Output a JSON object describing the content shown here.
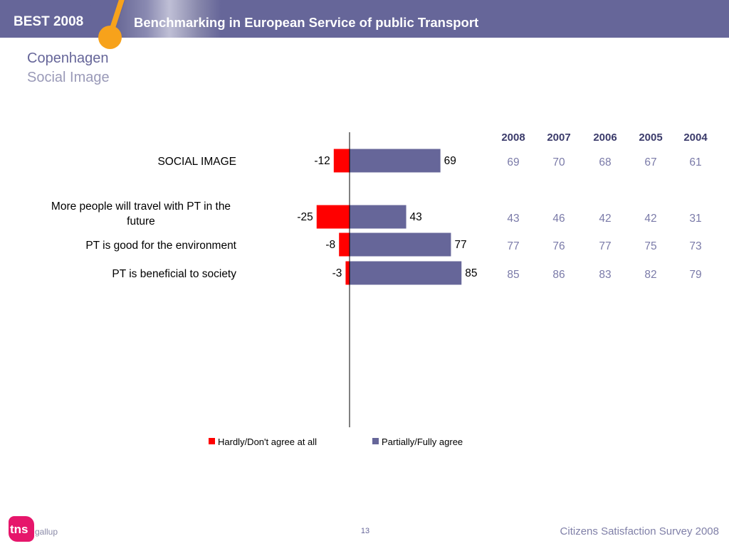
{
  "header": {
    "brand": "BEST 2008",
    "title": "Benchmarking in European Service of public Transport"
  },
  "page": {
    "city": "Copenhagen",
    "topic": "Social Image"
  },
  "chart_data": {
    "type": "bar",
    "orientation": "horizontal",
    "stacked": "diverging",
    "categories": [
      "SOCIAL IMAGE",
      "More people will travel with PT in the future",
      "PT is good for the environment",
      "PT is beneficial to society"
    ],
    "series": [
      {
        "name": "Hardly/Don't agree at all",
        "values": [
          -12,
          -25,
          -8,
          -3
        ],
        "color": "#ff0000"
      },
      {
        "name": "Partially/Fully agree",
        "values": [
          69,
          43,
          77,
          85
        ],
        "color": "#666699"
      }
    ],
    "legend_position": "bottom",
    "grid": false,
    "table": {
      "columns": [
        "2008",
        "2007",
        "2006",
        "2005",
        "2004"
      ],
      "rows": [
        [
          69,
          70,
          68,
          67,
          61
        ],
        [
          43,
          46,
          42,
          42,
          31
        ],
        [
          77,
          76,
          77,
          75,
          73
        ],
        [
          85,
          86,
          83,
          82,
          79
        ]
      ]
    }
  },
  "footer": {
    "logo_text": "tns",
    "logo_sub": "gallup",
    "page_number": "13",
    "survey": "Citizens Satisfaction Survey 2008"
  },
  "colors": {
    "header": "#666699",
    "accent": "#f7a21b",
    "negative": "#ff0000",
    "positive": "#666699",
    "table_text": "#7a7aa8",
    "logo": "#e6166b"
  }
}
